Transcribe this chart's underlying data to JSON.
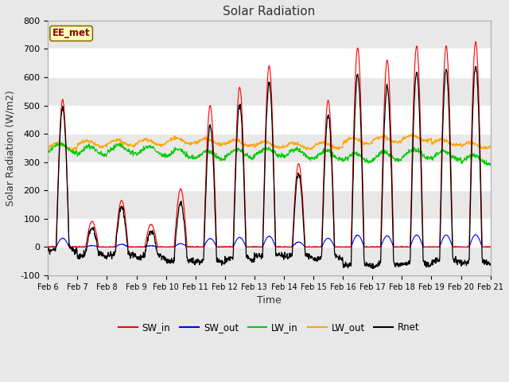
{
  "title": "Solar Radiation",
  "xlabel": "Time",
  "ylabel": "Solar Radiation (W/m2)",
  "ylim": [
    -100,
    800
  ],
  "yticks": [
    -100,
    0,
    100,
    200,
    300,
    400,
    500,
    600,
    700,
    800
  ],
  "n_days": 15,
  "points_per_day": 96,
  "colors": {
    "SW_in": "#FF0000",
    "SW_out": "#0000FF",
    "LW_in": "#00CC00",
    "LW_out": "#FFA500",
    "Rnet": "#000000"
  },
  "legend_label": "EE_met",
  "fig_bg": "#E8E8E8",
  "plot_bg": "#FFFFFF",
  "band_colors": [
    "#FFFFFF",
    "#DCDCDC"
  ]
}
